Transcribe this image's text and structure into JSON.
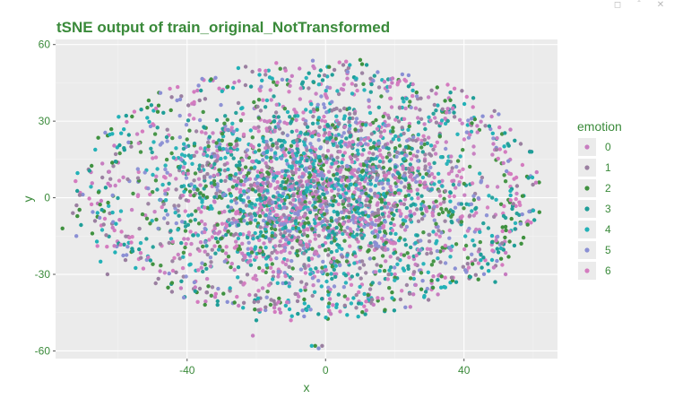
{
  "window_controls": {
    "restore_icon": "restore-icon",
    "collapse_icon": "chevron-double-up-icon",
    "close_icon": "close-icon"
  },
  "chart_data": {
    "type": "scatter",
    "title": "tSNE output of train_original_NotTransformed",
    "xlabel": "x",
    "ylabel": "y",
    "xlim": [
      -78,
      67
    ],
    "ylim": [
      -63,
      62
    ],
    "xticks": [
      -40,
      0,
      40
    ],
    "xtick_labels": [
      "-40",
      "0",
      "40"
    ],
    "yticks": [
      -60,
      -30,
      0,
      30,
      60
    ],
    "ytick_labels": [
      "-60",
      "-30",
      "0",
      "30",
      "60"
    ],
    "grid": true,
    "legend": {
      "title": "emotion",
      "position": "right",
      "entries": [
        "0",
        "1",
        "2",
        "3",
        "4",
        "5",
        "6"
      ]
    },
    "series": [
      {
        "name": "0",
        "color": "#c77cc0"
      },
      {
        "name": "1",
        "color": "#9a7fa0"
      },
      {
        "name": "2",
        "color": "#3f913f"
      },
      {
        "name": "3",
        "color": "#1f9e98"
      },
      {
        "name": "4",
        "color": "#22b1b7"
      },
      {
        "name": "5",
        "color": "#8a8fd4"
      },
      {
        "name": "6",
        "color": "#d47bbf"
      }
    ],
    "cloud": {
      "center": [
        -2,
        2
      ],
      "outliers": [
        [
          -37,
          42
        ],
        [
          -36,
          42
        ],
        [
          -38,
          41.5
        ],
        [
          -3,
          -58
        ],
        [
          -2,
          -59
        ],
        [
          -1,
          -58
        ],
        [
          -4,
          -58
        ],
        [
          -21,
          -54
        ],
        [
          -20,
          -48
        ],
        [
          -10,
          -48
        ],
        [
          -76,
          -12
        ],
        [
          -72,
          -15
        ],
        [
          -73,
          -6
        ],
        [
          60,
          -5
        ],
        [
          61,
          10
        ],
        [
          59,
          18
        ],
        [
          4,
          53
        ],
        [
          10,
          54
        ],
        [
          24,
          48
        ],
        [
          -63,
          -30
        ],
        [
          -65,
          -25
        ],
        [
          52,
          -30
        ],
        [
          49,
          -33
        ]
      ]
    }
  }
}
